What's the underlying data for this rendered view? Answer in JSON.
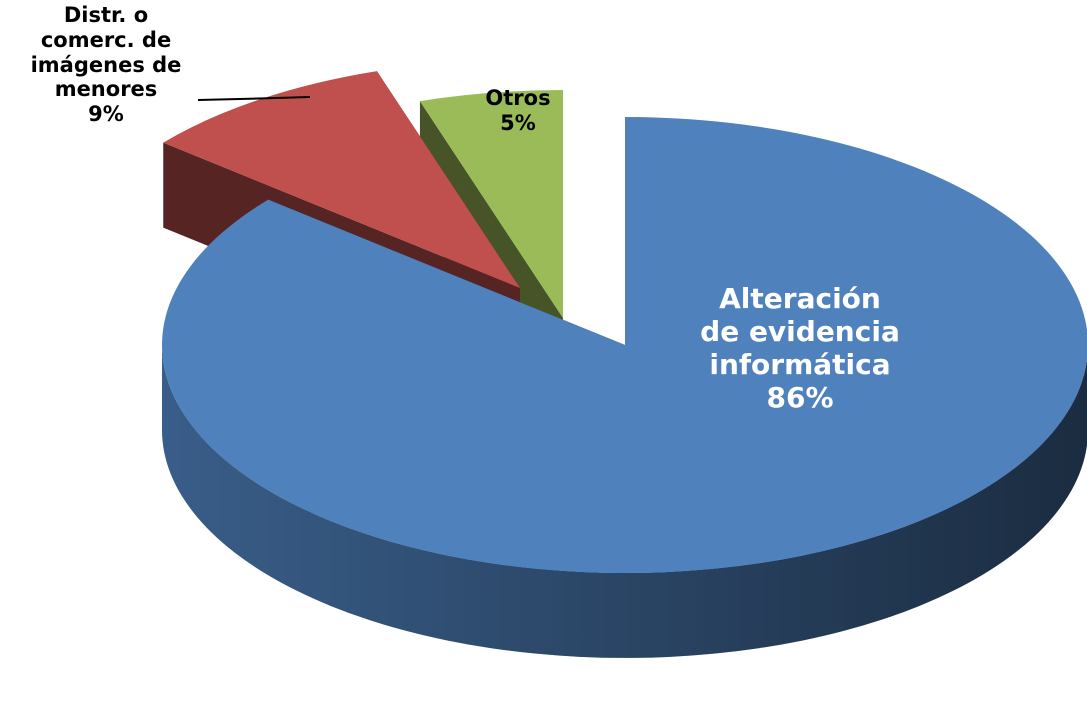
{
  "chart_data": {
    "type": "pie3d",
    "categories": [
      "Alteración de evidencia informática",
      "Distr. o comerc. de imágenes de menores",
      "Otros"
    ],
    "values": [
      86,
      9,
      5
    ],
    "value_labels": [
      "86%",
      "9%",
      "5%"
    ],
    "colors": [
      "#4f81bd",
      "#c0504d",
      "#9bbb59"
    ]
  }
}
